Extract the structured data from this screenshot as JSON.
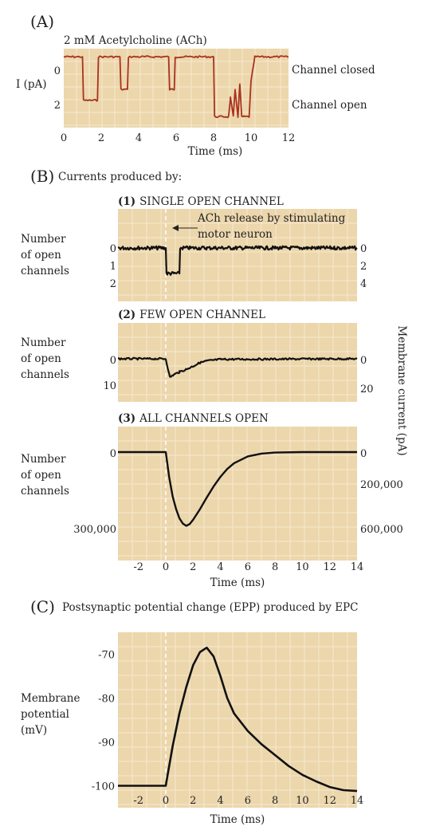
{
  "panel_a": {
    "letter": "(A)",
    "subtitle": "2 mM Acetylcholine (ACh)",
    "ylabel": "I (pA)",
    "xlabel": "Time (ms)",
    "y_ticks": [
      "0",
      "2"
    ],
    "x_ticks": [
      "0",
      "2",
      "4",
      "6",
      "8",
      "10",
      "12"
    ],
    "label_closed": "Channel closed",
    "label_open": "Channel open"
  },
  "panel_b": {
    "letter": "(B)",
    "heading": "Currents produced by:",
    "right_axis_label": "Membrane current (pA)",
    "sub1": {
      "num": "(1)",
      "title": "SINGLE OPEN CHANNEL",
      "left_label": [
        "Number",
        "of open",
        "channels"
      ],
      "left_ticks": [
        "0",
        "1",
        "2"
      ],
      "right_ticks": [
        "0",
        "2",
        "4"
      ],
      "annotation": [
        "ACh release by stimulating",
        "motor neuron"
      ]
    },
    "sub2": {
      "num": "(2)",
      "title": "FEW OPEN CHANNEL",
      "left_label": [
        "Number",
        "of open",
        "channels"
      ],
      "left_ticks": [
        "0",
        "10"
      ],
      "right_ticks": [
        "0",
        "20"
      ]
    },
    "sub3": {
      "num": "(3)",
      "title": "ALL CHANNELS OPEN",
      "left_label": [
        "Number",
        "of open",
        "channels"
      ],
      "left_ticks": [
        "0",
        "300,000"
      ],
      "right_ticks": [
        "0",
        "200,000",
        "600,000"
      ],
      "x_ticks": [
        "-2",
        "0",
        "2",
        "4",
        "6",
        "8",
        "10",
        "12",
        "14"
      ],
      "xlabel": "Time (ms)"
    }
  },
  "panel_c": {
    "letter": "(C)",
    "title": "Postsynaptic potential change (EPP) produced by EPC",
    "ylabel": [
      "Membrane",
      "potential",
      "(mV)"
    ],
    "y_ticks": [
      "-70",
      "-80",
      "-90",
      "-100"
    ],
    "x_ticks": [
      "-2",
      "0",
      "2",
      "4",
      "6",
      "8",
      "10",
      "12",
      "14"
    ],
    "xlabel": "Time (ms)"
  },
  "colors": {
    "panel_bg": "#ecd6ac",
    "grid": "#f6e9cf",
    "trace_a": "#a8321e",
    "trace": "#111111",
    "dashed_marker": "#ffffff"
  },
  "chart_data": [
    {
      "type": "line",
      "panel": "A",
      "xlabel": "Time (ms)",
      "ylabel": "I (pA)",
      "xlim": [
        0,
        12
      ],
      "ylim": [
        -0.3,
        2.6
      ],
      "y_inverted": true,
      "x": [
        0,
        1.0,
        1.05,
        1.8,
        1.85,
        3.0,
        3.05,
        3.4,
        3.45,
        5.6,
        5.65,
        5.9,
        5.95,
        8.0,
        8.05,
        8.8,
        8.9,
        9.05,
        9.15,
        9.3,
        9.4,
        9.5,
        9.6,
        9.9,
        10.0,
        10.2,
        12
      ],
      "y": [
        0,
        0,
        1.6,
        1.6,
        0,
        0,
        1.2,
        1.2,
        0,
        0,
        1.2,
        1.2,
        0,
        0,
        2.2,
        2.2,
        1.5,
        2.2,
        1.2,
        2.2,
        1.0,
        2.2,
        2.2,
        2.2,
        0.9,
        0,
        0
      ],
      "grid": true
    },
    {
      "type": "line",
      "panel": "B1",
      "title": "SINGLE OPEN CHANNEL",
      "xlim": [
        -3.5,
        14
      ],
      "ylim_left": [
        0,
        2
      ],
      "ylim_right": [
        0,
        4
      ],
      "x": [
        -3.5,
        0,
        0.05,
        1.0,
        1.05,
        14
      ],
      "y": [
        0,
        0,
        1.6,
        1.6,
        0,
        0
      ],
      "grid": true
    },
    {
      "type": "line",
      "panel": "B2",
      "title": "FEW OPEN CHANNEL",
      "xlim": [
        -3.5,
        14
      ],
      "ylim_left": [
        0,
        10
      ],
      "ylim_right": [
        0,
        20
      ],
      "x": [
        -3.5,
        0,
        0.3,
        0.6,
        1.0,
        1.5,
        2.0,
        2.5,
        3.0,
        4.0,
        14
      ],
      "y": [
        0,
        0,
        7,
        6,
        5,
        4,
        2.8,
        1.5,
        0.8,
        0.2,
        0
      ],
      "grid": true
    },
    {
      "type": "line",
      "panel": "B3",
      "title": "ALL CHANNELS OPEN",
      "xlabel": "Time (ms)",
      "xlim": [
        -3.5,
        14
      ],
      "ylim_left": [
        0,
        300000
      ],
      "ylim_right": [
        0,
        600000
      ],
      "x": [
        -3.5,
        0,
        0.25,
        0.5,
        0.75,
        1.0,
        1.25,
        1.5,
        1.75,
        2.0,
        2.5,
        3.0,
        3.5,
        4.0,
        4.5,
        5.0,
        6.0,
        7.0,
        8.0,
        10.0,
        12.0,
        14.0
      ],
      "y": [
        0,
        0,
        100000,
        175000,
        225000,
        262000,
        283000,
        292000,
        285000,
        268000,
        226000,
        180000,
        136000,
        98000,
        67000,
        44000,
        17000,
        6000,
        2000,
        0,
        0,
        0
      ],
      "grid": true
    },
    {
      "type": "line",
      "panel": "C",
      "title": "Postsynaptic potential change (EPP) produced by EPC",
      "xlabel": "Time (ms)",
      "ylabel": "Membrane potential (mV)",
      "xlim": [
        -3.5,
        14
      ],
      "ylim": [
        -105,
        -65
      ],
      "x": [
        -3.5,
        -1,
        0,
        0.05,
        0.5,
        1.0,
        1.5,
        2.0,
        2.5,
        3.0,
        3.5,
        4.0,
        4.5,
        5.0,
        6.0,
        7.0,
        8.0,
        9.0,
        10.0,
        11.0,
        12.0,
        13.0,
        14.0
      ],
      "y": [
        -100,
        -100,
        -100,
        -99,
        -91,
        -83.5,
        -77.5,
        -72.5,
        -69.5,
        -68.5,
        -70.5,
        -75,
        -80,
        -83.5,
        -87.5,
        -90.5,
        -93,
        -95.5,
        -97.5,
        -99,
        -100.3,
        -101,
        -101.2
      ],
      "grid": true
    }
  ]
}
